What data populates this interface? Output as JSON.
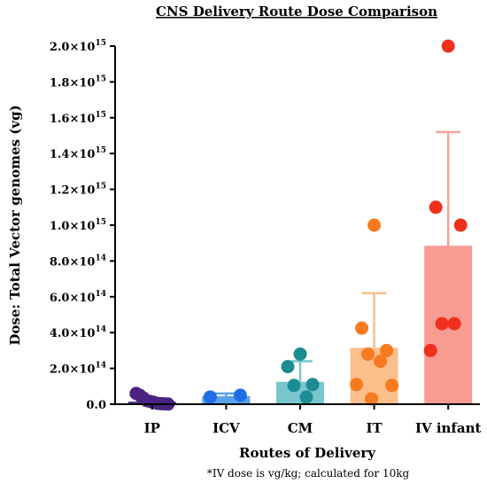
{
  "chart_data": {
    "type": "bar",
    "title": "CNS Delivery Route Dose Comparison",
    "xlabel": "Routes of Delivery",
    "ylabel": "Dose: Total Vector genomes (vg)",
    "footnote": "*IV dose is vg/kg; calculated for 10kg",
    "ylim": [
      0,
      2000000000000000.0
    ],
    "y_ticks": [
      {
        "value": 0,
        "label": "0.0"
      },
      {
        "value": 200000000000000.0,
        "label": "2.0×10",
        "exp": "14"
      },
      {
        "value": 400000000000000.0,
        "label": "4.0×10",
        "exp": "14"
      },
      {
        "value": 600000000000000.0,
        "label": "6.0×10",
        "exp": "14"
      },
      {
        "value": 800000000000000.0,
        "label": "8.0×10",
        "exp": "14"
      },
      {
        "value": 1000000000000000.0,
        "label": "1.0×10",
        "exp": "15"
      },
      {
        "value": 1200000000000000.0,
        "label": "1.2×10",
        "exp": "15"
      },
      {
        "value": 1400000000000000.0,
        "label": "1.4×10",
        "exp": "15"
      },
      {
        "value": 1600000000000000.0,
        "label": "1.6×10",
        "exp": "15"
      },
      {
        "value": 1800000000000000.0,
        "label": "1.8×10",
        "exp": "15"
      },
      {
        "value": 2000000000000000.0,
        "label": "2.0×10",
        "exp": "15"
      }
    ],
    "categories": [
      "IP",
      "ICV",
      "CM",
      "IT",
      "IV infant"
    ],
    "means": [
      15000000000000.0,
      45000000000000.0,
      125000000000000.0,
      315000000000000.0,
      885000000000000.0
    ],
    "sd": [
      15000000000000.0,
      15000000000000.0,
      115000000000000.0,
      305000000000000.0,
      635000000000000.0
    ],
    "points": [
      [
        60000000000000.0,
        50000000000000.0,
        35000000000000.0,
        20000000000000.0,
        15000000000000.0,
        10000000000000.0,
        5000000000000.0,
        3000000000000.0,
        2000000000000.0,
        1000000000000.0
      ],
      [
        40000000000000.0,
        50000000000000.0
      ],
      [
        280000000000000.0,
        210000000000000.0,
        110000000000000.0,
        105000000000000.0,
        40000000000000.0
      ],
      [
        1000000000000000.0,
        425000000000000.0,
        300000000000000.0,
        280000000000000.0,
        240000000000000.0,
        110000000000000.0,
        105000000000000.0,
        30000000000000.0
      ],
      [
        2000000000000000.0,
        1100000000000000.0,
        1000000000000000.0,
        450000000000000.0,
        450000000000000.0,
        300000000000000.0
      ]
    ],
    "colors": {
      "bar": [
        "#5b3b8e",
        "#5aa0ea",
        "#79c6cc",
        "#fbbf8c",
        "#f79b93"
      ],
      "point": [
        "#4a2480",
        "#1f6ee6",
        "#1b8c93",
        "#f77a1f",
        "#f0301d"
      ],
      "error": [
        "#4a2480",
        "#5aa0ea",
        "#79c6cc",
        "#fbbf8c",
        "#f7a29a"
      ]
    }
  }
}
